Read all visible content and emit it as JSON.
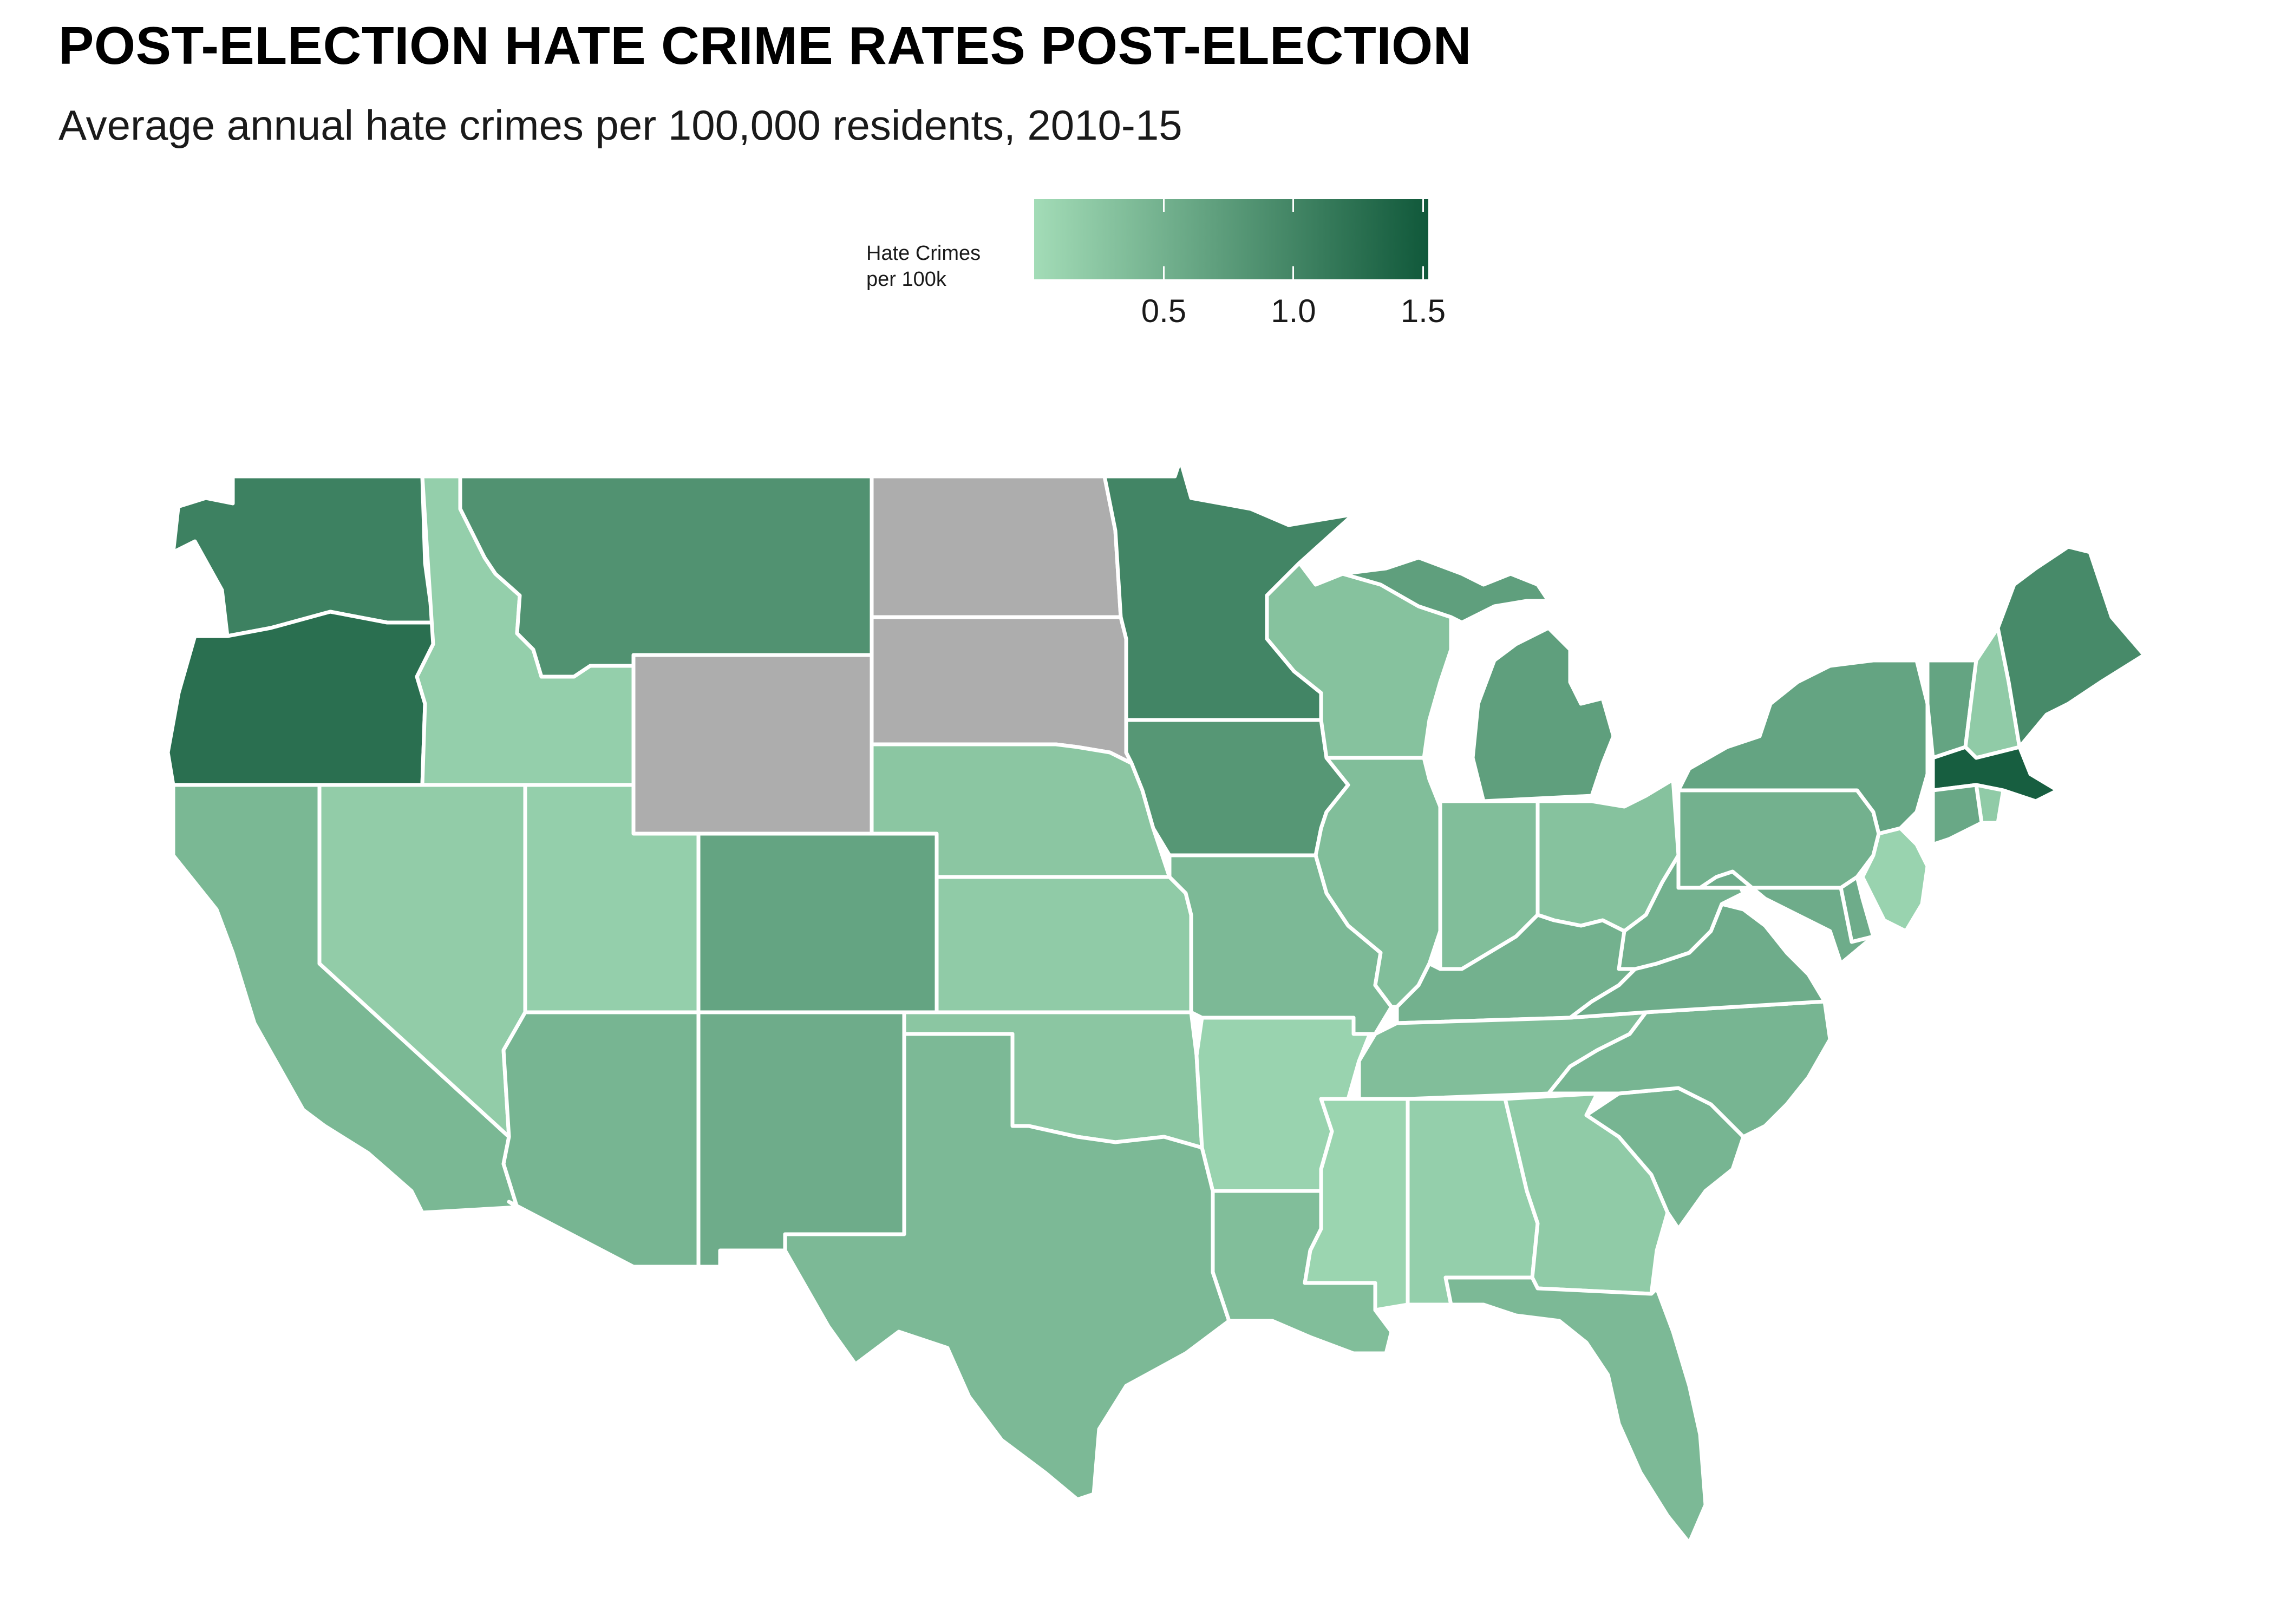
{
  "title": "POST-ELECTION HATE CRIME RATES POST-ELECTION",
  "subtitle": "Average annual hate crimes per 100,000 residents, 2010-15",
  "legend": {
    "title": "Hate Crimes\nper 100k",
    "min": 0.0,
    "max": 1.52,
    "ticks": [
      {
        "label": "0.5",
        "value": 0.5
      },
      {
        "label": "1.0",
        "value": 1.0
      },
      {
        "label": "1.5",
        "value": 1.5
      }
    ],
    "low_color": "#a3dcb7",
    "high_color": "#10583a"
  },
  "colors": {
    "no_data": "#adadad",
    "border": "#ffffff",
    "background": "#ffffff"
  },
  "chart_data": {
    "type": "choropleth",
    "region": "contiguous United States",
    "states": [
      {
        "name": "Washington",
        "value": 1.05
      },
      {
        "name": "Oregon",
        "value": 1.25
      },
      {
        "name": "California",
        "value": 0.42
      },
      {
        "name": "Idaho",
        "value": 0.15
      },
      {
        "name": "Nevada",
        "value": 0.18
      },
      {
        "name": "Montana",
        "value": 0.85
      },
      {
        "name": "Wyoming",
        "value": null
      },
      {
        "name": "Utah",
        "value": 0.15
      },
      {
        "name": "Arizona",
        "value": 0.45
      },
      {
        "name": "Colorado",
        "value": 0.65
      },
      {
        "name": "New Mexico",
        "value": 0.55
      },
      {
        "name": "North Dakota",
        "value": null
      },
      {
        "name": "South Dakota",
        "value": null
      },
      {
        "name": "Nebraska",
        "value": 0.25
      },
      {
        "name": "Kansas",
        "value": 0.2
      },
      {
        "name": "Oklahoma",
        "value": 0.25
      },
      {
        "name": "Texas",
        "value": 0.4
      },
      {
        "name": "Minnesota",
        "value": 1.0
      },
      {
        "name": "Iowa",
        "value": 0.8
      },
      {
        "name": "Missouri",
        "value": 0.4
      },
      {
        "name": "Arkansas",
        "value": 0.1
      },
      {
        "name": "Louisiana",
        "value": 0.35
      },
      {
        "name": "Wisconsin",
        "value": 0.3
      },
      {
        "name": "Illinois",
        "value": 0.35
      },
      {
        "name": "Mississippi",
        "value": 0.08
      },
      {
        "name": "Michigan",
        "value": 0.7
      },
      {
        "name": "Indiana",
        "value": 0.35
      },
      {
        "name": "Ohio",
        "value": 0.3
      },
      {
        "name": "Kentucky",
        "value": 0.5
      },
      {
        "name": "Tennessee",
        "value": 0.35
      },
      {
        "name": "Alabama",
        "value": 0.15
      },
      {
        "name": "Georgia",
        "value": 0.2
      },
      {
        "name": "Florida",
        "value": 0.4
      },
      {
        "name": "South Carolina",
        "value": 0.45
      },
      {
        "name": "North Carolina",
        "value": 0.45
      },
      {
        "name": "Virginia",
        "value": 0.55
      },
      {
        "name": "West Virginia",
        "value": 0.5
      },
      {
        "name": "Pennsylvania",
        "value": 0.5
      },
      {
        "name": "New York",
        "value": 0.65
      },
      {
        "name": "Vermont",
        "value": 0.65
      },
      {
        "name": "New Hampshire",
        "value": 0.2
      },
      {
        "name": "Maine",
        "value": 0.95
      },
      {
        "name": "Massachusetts",
        "value": 1.45
      },
      {
        "name": "Rhode Island",
        "value": 0.2
      },
      {
        "name": "Connecticut",
        "value": 0.6
      },
      {
        "name": "New Jersey",
        "value": 0.1
      },
      {
        "name": "Delaware",
        "value": 0.55
      },
      {
        "name": "Maryland",
        "value": 0.55
      }
    ]
  }
}
